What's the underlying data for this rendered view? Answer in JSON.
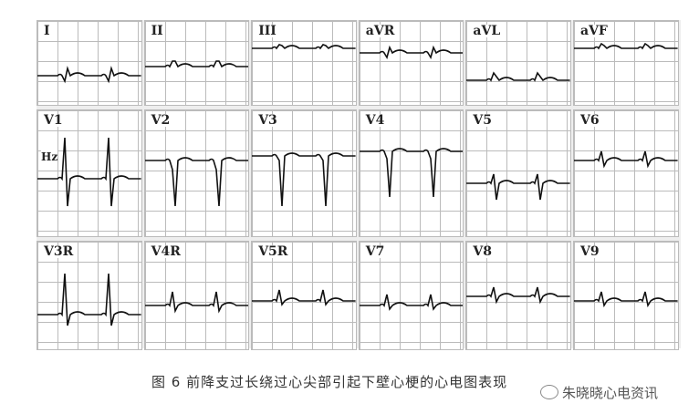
{
  "figure": {
    "rows": [
      {
        "leads": [
          {
            "label": "I"
          },
          {
            "label": "II"
          },
          {
            "label": "III"
          },
          {
            "label": "aVR"
          },
          {
            "label": "aVL"
          },
          {
            "label": "aVF"
          }
        ]
      },
      {
        "leads": [
          {
            "label": "V1",
            "sub": "Hz"
          },
          {
            "label": "V2"
          },
          {
            "label": "V3"
          },
          {
            "label": "V4"
          },
          {
            "label": "V5"
          },
          {
            "label": "V6"
          }
        ]
      },
      {
        "leads": [
          {
            "label": "V3R"
          },
          {
            "label": "V4R"
          },
          {
            "label": "V5R"
          },
          {
            "label": "V7"
          },
          {
            "label": "V8"
          },
          {
            "label": "V9"
          }
        ]
      }
    ],
    "caption": "图 6  前降支过长绕过心尖部引起下壁心梗的心电图表现"
  },
  "watermark": {
    "text": "朱晓晓心电资讯",
    "icon": "wechat-icon"
  }
}
